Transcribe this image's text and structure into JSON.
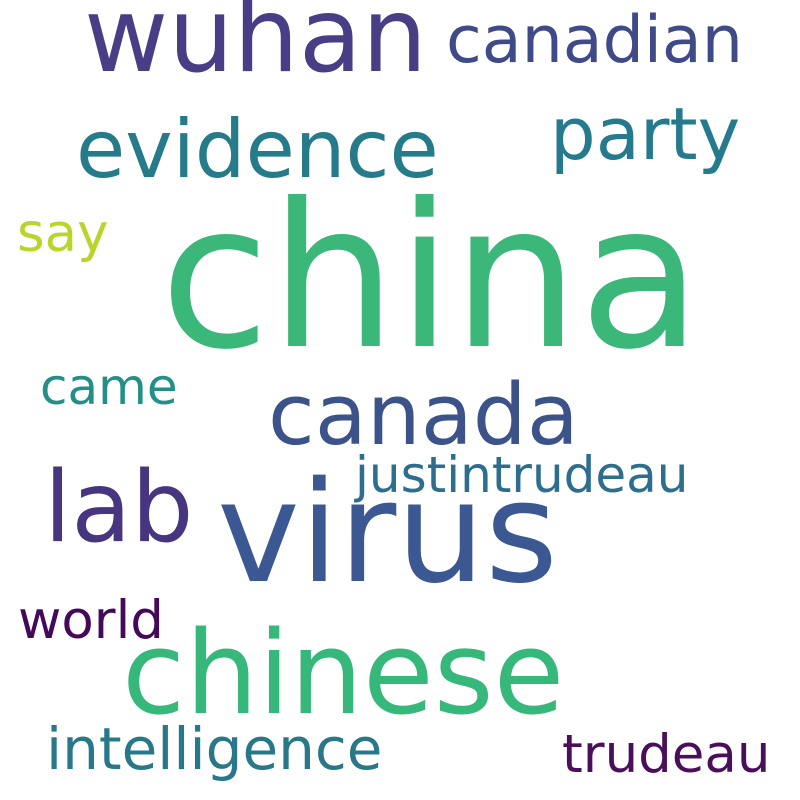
{
  "words": [
    {
      "text": "china",
      "color": "#3bb77a"
    },
    {
      "text": "virus",
      "color": "#3b5893"
    },
    {
      "text": "chinese",
      "color": "#36b87b"
    },
    {
      "text": "wuhan",
      "color": "#473e86"
    },
    {
      "text": "lab",
      "color": "#47357f"
    },
    {
      "text": "canada",
      "color": "#3b5388"
    },
    {
      "text": "evidence",
      "color": "#267b8b"
    },
    {
      "text": "party",
      "color": "#267a8d"
    },
    {
      "text": "canadian",
      "color": "#3f4a89"
    },
    {
      "text": "intelligence",
      "color": "#28788a"
    },
    {
      "text": "justintrudeau",
      "color": "#2d6d8e"
    },
    {
      "text": "trudeau",
      "color": "#4a0f5a"
    },
    {
      "text": "world",
      "color": "#45095a"
    },
    {
      "text": "came",
      "color": "#229088"
    },
    {
      "text": "say",
      "color": "#bbd42b"
    }
  ]
}
